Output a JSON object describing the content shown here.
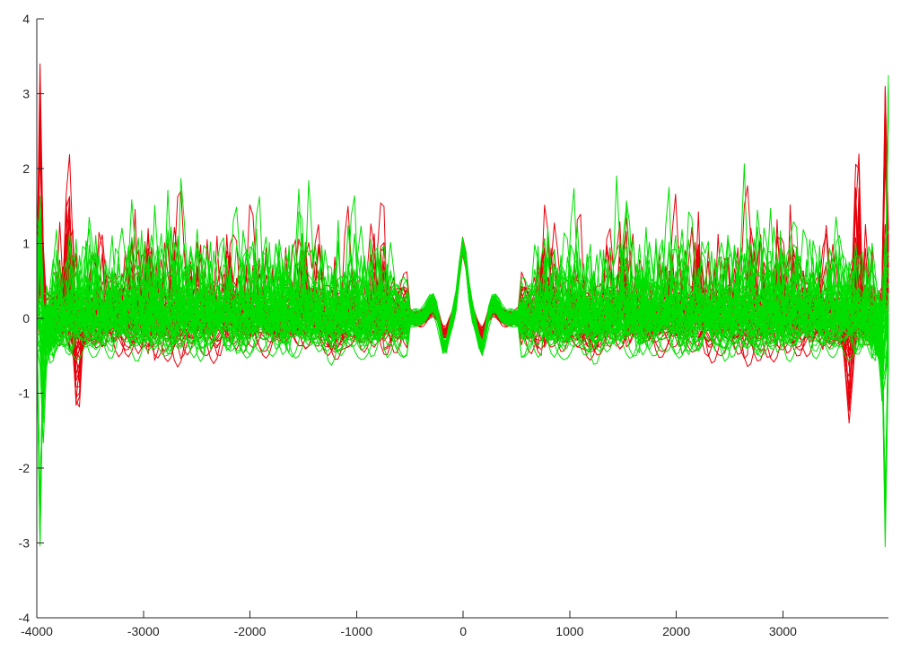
{
  "chart_data": {
    "type": "line",
    "title": "",
    "xlabel": "",
    "ylabel": "",
    "xlim": [
      -4000,
      4000
    ],
    "ylim": [
      -4,
      4
    ],
    "grid": false,
    "legend": "none",
    "x_ticks": [
      -4000,
      -3000,
      -2000,
      -1000,
      0,
      1000,
      2000,
      3000
    ],
    "y_ticks": [
      -4,
      -3,
      -2,
      -1,
      0,
      1,
      2,
      3,
      4
    ],
    "x_tick_labels": [
      "-4000",
      "-3000",
      "-2000",
      "-1000",
      "0",
      "1000",
      "2000",
      "3000"
    ],
    "y_tick_labels": [
      "-4",
      "-3",
      "-2",
      "-1",
      "0",
      "1",
      "2",
      "3",
      "4"
    ],
    "colors": {
      "red_family": "#e8000b",
      "green_family": "#00e000",
      "axes": "#262626"
    },
    "series_families": [
      {
        "color": "#e8000b",
        "count": 40,
        "symmetric": true,
        "peaks": [
          {
            "x": 0,
            "y": 1.0
          },
          {
            "x": -750,
            "y": 0.97
          },
          {
            "x": 750,
            "y": 0.97
          },
          {
            "x": -1500,
            "y": 1.05
          },
          {
            "x": 1500,
            "y": 1.05
          },
          {
            "x": -2200,
            "y": 1.08
          },
          {
            "x": 2200,
            "y": 1.08
          },
          {
            "x": -2950,
            "y": 1.2
          },
          {
            "x": 2950,
            "y": 1.2
          },
          {
            "x": -3700,
            "y": 2.3
          },
          {
            "x": 3700,
            "y": 2.3
          },
          {
            "x": -3970,
            "y": 3.15
          },
          {
            "x": 3970,
            "y": 3.15
          }
        ],
        "troughs": [
          {
            "x": -3620,
            "y": -1.35
          },
          {
            "x": 3620,
            "y": -1.35
          },
          {
            "x": -200,
            "y": -0.25
          },
          {
            "x": 200,
            "y": -0.25
          }
        ]
      },
      {
        "color": "#00e000",
        "count": 60,
        "symmetric": true,
        "peaks": [
          {
            "x": 0,
            "y": 1.0
          },
          {
            "x": -3400,
            "y": 1.5
          },
          {
            "x": 3400,
            "y": 1.5
          },
          {
            "x": -3990,
            "y": 3.7
          },
          {
            "x": 3990,
            "y": 3.7
          }
        ],
        "troughs": [
          {
            "x": -3970,
            "y": -3.0
          },
          {
            "x": 3970,
            "y": -3.0
          },
          {
            "x": -170,
            "y": -0.45
          },
          {
            "x": 170,
            "y": -0.45
          }
        ],
        "quiet_band": [
          -600,
          600
        ],
        "typical_range": [
          -0.45,
          1.0
        ]
      }
    ]
  }
}
